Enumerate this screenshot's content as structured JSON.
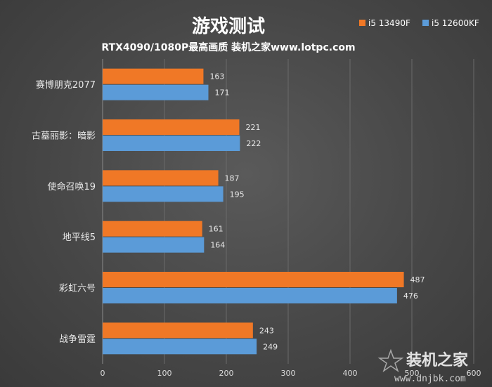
{
  "chart_data": {
    "type": "bar",
    "orientation": "horizontal",
    "title": "游戏测试",
    "subtitle": "RTX4090/1080P最高画质 装机之家www.lotpc.com",
    "categories": [
      "赛博朋克2077",
      "古墓丽影：暗影",
      "使命召唤19",
      "地平线5",
      "彩虹六号",
      "战争雷霆"
    ],
    "series": [
      {
        "name": "i5 13490F",
        "color": "#f07826",
        "values": [
          163,
          221,
          187,
          161,
          487,
          243
        ]
      },
      {
        "name": "i5 12600KF",
        "color": "#5b9bd8",
        "values": [
          171,
          222,
          195,
          164,
          476,
          249
        ]
      }
    ],
    "xlim": [
      0,
      600
    ],
    "xticks": [
      0,
      100,
      200,
      300,
      400,
      500,
      600
    ],
    "grid": true,
    "legend": "top-right"
  },
  "watermark": {
    "main": "装机之家",
    "sub": "www.dnjbk.com"
  }
}
